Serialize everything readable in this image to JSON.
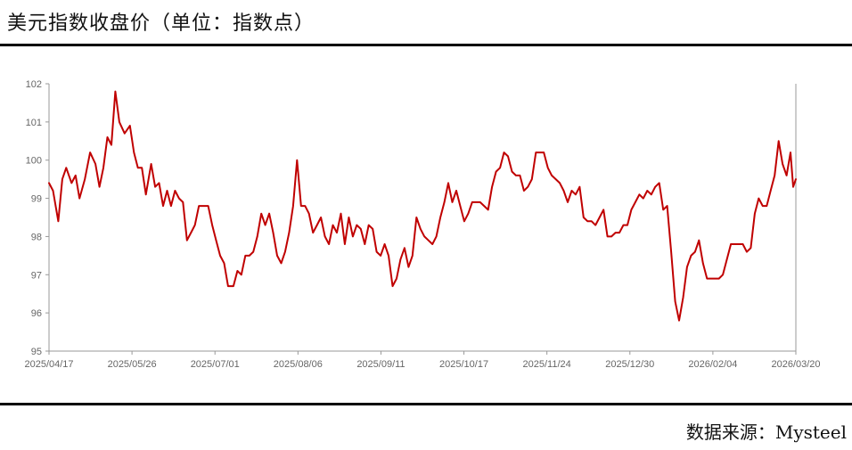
{
  "header": {
    "title": "美元指数收盘价（单位：指数点）"
  },
  "footer": {
    "source": "数据来源：Mysteel"
  },
  "chart_data": {
    "type": "line",
    "title": "美元指数收盘价（单位：指数点）",
    "xlabel": "",
    "ylabel": "",
    "ylim": [
      95,
      102
    ],
    "yticks": [
      "95",
      "96",
      "97",
      "98",
      "99",
      "100",
      "101",
      "102"
    ],
    "xticks": [
      "2025/04/17",
      "2025/05/26",
      "2025/07/01",
      "2025/08/06",
      "2025/09/11",
      "2025/10/17",
      "2025/11/24",
      "2025/12/30",
      "2026/02/04",
      "2026/03/20"
    ],
    "grid": false,
    "line_color": "#c00000",
    "series": [
      {
        "name": "",
        "points": [
          [
            0,
            99.4
          ],
          [
            3,
            99.2
          ],
          [
            7,
            98.4
          ],
          [
            10,
            99.5
          ],
          [
            13,
            99.8
          ],
          [
            17,
            99.4
          ],
          [
            20,
            99.6
          ],
          [
            23,
            99.0
          ],
          [
            27,
            99.5
          ],
          [
            31,
            100.2
          ],
          [
            35,
            99.9
          ],
          [
            38,
            99.3
          ],
          [
            41,
            99.8
          ],
          [
            44,
            100.6
          ],
          [
            47,
            100.4
          ],
          [
            50,
            101.8
          ],
          [
            53,
            101.0
          ],
          [
            57,
            100.7
          ],
          [
            61,
            100.9
          ],
          [
            64,
            100.2
          ],
          [
            67,
            99.8
          ],
          [
            70,
            99.8
          ],
          [
            73,
            99.1
          ],
          [
            77,
            99.9
          ],
          [
            80,
            99.3
          ],
          [
            83,
            99.4
          ],
          [
            86,
            98.8
          ],
          [
            89,
            99.2
          ],
          [
            92,
            98.8
          ],
          [
            95,
            99.2
          ],
          [
            98,
            99.0
          ],
          [
            101,
            98.9
          ],
          [
            104,
            97.9
          ],
          [
            107,
            98.1
          ],
          [
            110,
            98.3
          ],
          [
            113,
            98.8
          ],
          [
            117,
            98.8
          ],
          [
            120,
            98.8
          ],
          [
            123,
            98.3
          ],
          [
            126,
            97.9
          ],
          [
            129,
            97.5
          ],
          [
            132,
            97.3
          ],
          [
            135,
            96.7
          ],
          [
            139,
            96.7
          ],
          [
            142,
            97.1
          ],
          [
            145,
            97.0
          ],
          [
            148,
            97.5
          ],
          [
            151,
            97.5
          ],
          [
            154,
            97.6
          ],
          [
            157,
            98.0
          ],
          [
            160,
            98.6
          ],
          [
            163,
            98.3
          ],
          [
            166,
            98.6
          ],
          [
            169,
            98.1
          ],
          [
            172,
            97.5
          ],
          [
            175,
            97.3
          ],
          [
            178,
            97.6
          ],
          [
            181,
            98.1
          ],
          [
            184,
            98.8
          ],
          [
            187,
            100.0
          ],
          [
            190,
            98.8
          ],
          [
            193,
            98.8
          ],
          [
            196,
            98.6
          ],
          [
            199,
            98.1
          ],
          [
            202,
            98.3
          ],
          [
            205,
            98.5
          ],
          [
            208,
            98.0
          ],
          [
            211,
            97.8
          ],
          [
            214,
            98.3
          ],
          [
            217,
            98.1
          ],
          [
            220,
            98.6
          ],
          [
            223,
            97.8
          ],
          [
            226,
            98.5
          ],
          [
            229,
            98.0
          ],
          [
            232,
            98.3
          ],
          [
            235,
            98.2
          ],
          [
            238,
            97.8
          ],
          [
            241,
            98.3
          ],
          [
            244,
            98.2
          ],
          [
            247,
            97.6
          ],
          [
            250,
            97.5
          ],
          [
            253,
            97.8
          ],
          [
            256,
            97.5
          ],
          [
            259,
            96.7
          ],
          [
            262,
            96.9
          ],
          [
            265,
            97.4
          ],
          [
            268,
            97.7
          ],
          [
            271,
            97.2
          ],
          [
            274,
            97.5
          ],
          [
            277,
            98.5
          ],
          [
            280,
            98.2
          ],
          [
            283,
            98.0
          ],
          [
            286,
            97.9
          ],
          [
            289,
            97.8
          ],
          [
            292,
            98.0
          ],
          [
            295,
            98.5
          ],
          [
            298,
            98.9
          ],
          [
            301,
            99.4
          ],
          [
            304,
            98.9
          ],
          [
            307,
            99.2
          ],
          [
            310,
            98.8
          ],
          [
            313,
            98.4
          ],
          [
            316,
            98.6
          ],
          [
            319,
            98.9
          ],
          [
            322,
            98.9
          ],
          [
            325,
            98.9
          ],
          [
            328,
            98.8
          ],
          [
            331,
            98.7
          ],
          [
            334,
            99.3
          ],
          [
            337,
            99.7
          ],
          [
            340,
            99.8
          ],
          [
            343,
            100.2
          ],
          [
            346,
            100.1
          ],
          [
            349,
            99.7
          ],
          [
            352,
            99.6
          ],
          [
            355,
            99.6
          ],
          [
            358,
            99.2
          ],
          [
            361,
            99.3
          ],
          [
            364,
            99.5
          ],
          [
            367,
            100.2
          ],
          [
            370,
            100.2
          ],
          [
            373,
            100.2
          ],
          [
            376,
            99.8
          ],
          [
            379,
            99.6
          ],
          [
            382,
            99.5
          ],
          [
            385,
            99.4
          ],
          [
            388,
            99.2
          ],
          [
            391,
            98.9
          ],
          [
            394,
            99.2
          ],
          [
            397,
            99.1
          ],
          [
            400,
            99.3
          ],
          [
            403,
            98.5
          ],
          [
            406,
            98.4
          ],
          [
            409,
            98.4
          ],
          [
            412,
            98.3
          ],
          [
            415,
            98.5
          ],
          [
            418,
            98.7
          ],
          [
            421,
            98.0
          ],
          [
            424,
            98.0
          ],
          [
            427,
            98.1
          ],
          [
            430,
            98.1
          ],
          [
            433,
            98.3
          ],
          [
            436,
            98.3
          ],
          [
            439,
            98.7
          ],
          [
            442,
            98.9
          ],
          [
            445,
            99.1
          ],
          [
            448,
            99.0
          ],
          [
            451,
            99.2
          ],
          [
            454,
            99.1
          ],
          [
            457,
            99.3
          ],
          [
            460,
            99.4
          ],
          [
            463,
            98.7
          ],
          [
            466,
            98.8
          ],
          [
            469,
            97.6
          ],
          [
            472,
            96.3
          ],
          [
            475,
            95.8
          ],
          [
            478,
            96.4
          ],
          [
            481,
            97.2
          ],
          [
            484,
            97.5
          ],
          [
            487,
            97.6
          ],
          [
            490,
            97.9
          ],
          [
            493,
            97.3
          ],
          [
            496,
            96.9
          ],
          [
            499,
            96.9
          ],
          [
            502,
            96.9
          ],
          [
            505,
            96.9
          ],
          [
            508,
            97.0
          ],
          [
            511,
            97.4
          ],
          [
            514,
            97.8
          ],
          [
            517,
            97.8
          ],
          [
            520,
            97.8
          ],
          [
            523,
            97.8
          ],
          [
            526,
            97.6
          ],
          [
            529,
            97.7
          ],
          [
            532,
            98.6
          ],
          [
            535,
            99.0
          ],
          [
            538,
            98.8
          ],
          [
            541,
            98.8
          ],
          [
            544,
            99.2
          ],
          [
            547,
            99.6
          ],
          [
            550,
            100.5
          ],
          [
            553,
            99.9
          ],
          [
            556,
            99.6
          ],
          [
            559,
            100.2
          ],
          [
            561,
            99.3
          ],
          [
            563,
            99.5
          ]
        ]
      }
    ]
  }
}
